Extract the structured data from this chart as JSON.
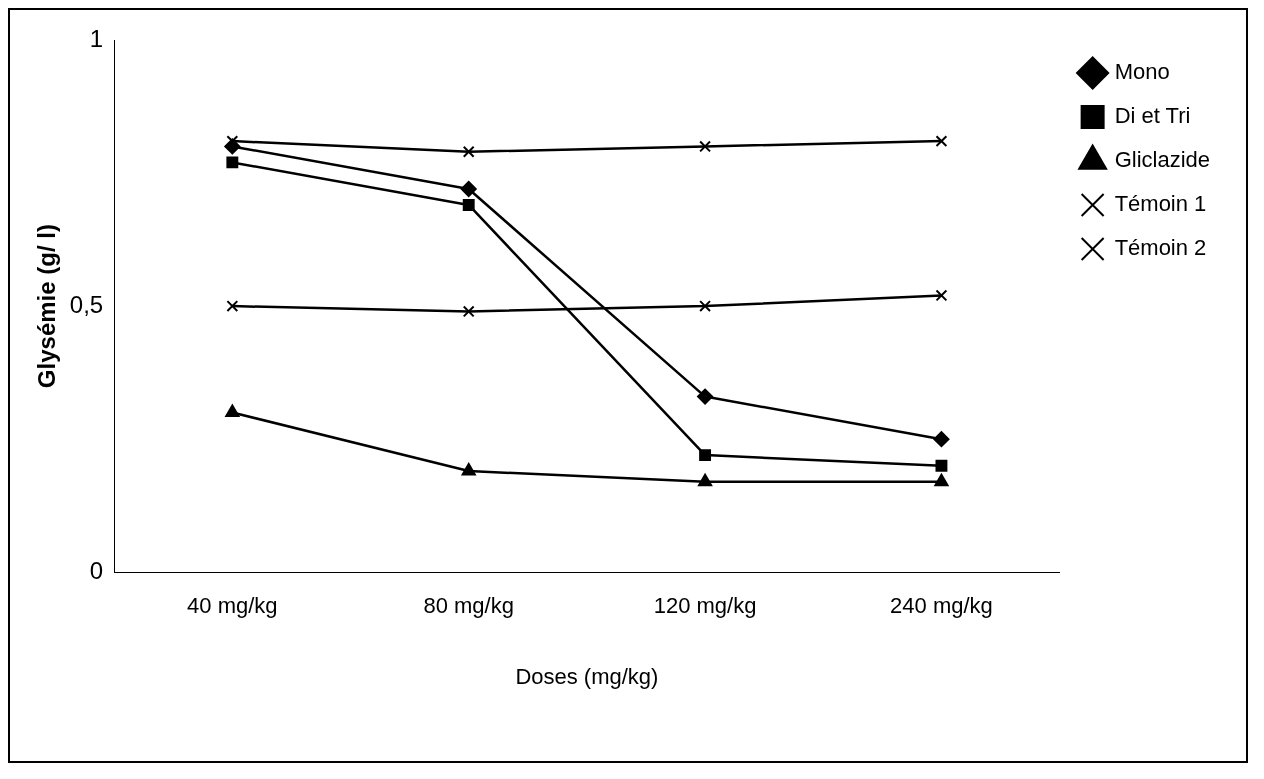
{
  "chart_data": {
    "type": "line",
    "xlabel": "Doses (mg/kg)",
    "ylabel": "Glysémie (g/ l)",
    "categories": [
      "40 mg/kg",
      "80 mg/kg",
      "120 mg/kg",
      "240 mg/kg"
    ],
    "series": [
      {
        "name": "Mono",
        "color": "#000000",
        "marker": "diamond",
        "values": [
          0.8,
          0.72,
          0.33,
          0.25
        ]
      },
      {
        "name": "Di et Tri",
        "color": "#000000",
        "marker": "square",
        "values": [
          0.77,
          0.69,
          0.22,
          0.2
        ]
      },
      {
        "name": "Gliclazide",
        "color": "#000000",
        "marker": "triangle",
        "values": [
          0.3,
          0.19,
          0.17,
          0.17
        ]
      },
      {
        "name": "Témoin 1",
        "color": "#000000",
        "marker": "cross",
        "values": [
          0.5,
          0.49,
          0.5,
          0.52
        ]
      },
      {
        "name": "Témoin 2",
        "color": "#000000",
        "marker": "cross",
        "values": [
          0.81,
          0.79,
          0.8,
          0.81
        ]
      }
    ],
    "ylim": [
      0,
      1
    ],
    "yticks": [
      0,
      {
        "value": 0.5,
        "label": "0,5"
      },
      1
    ],
    "legend": "right",
    "line_style": "solid"
  }
}
